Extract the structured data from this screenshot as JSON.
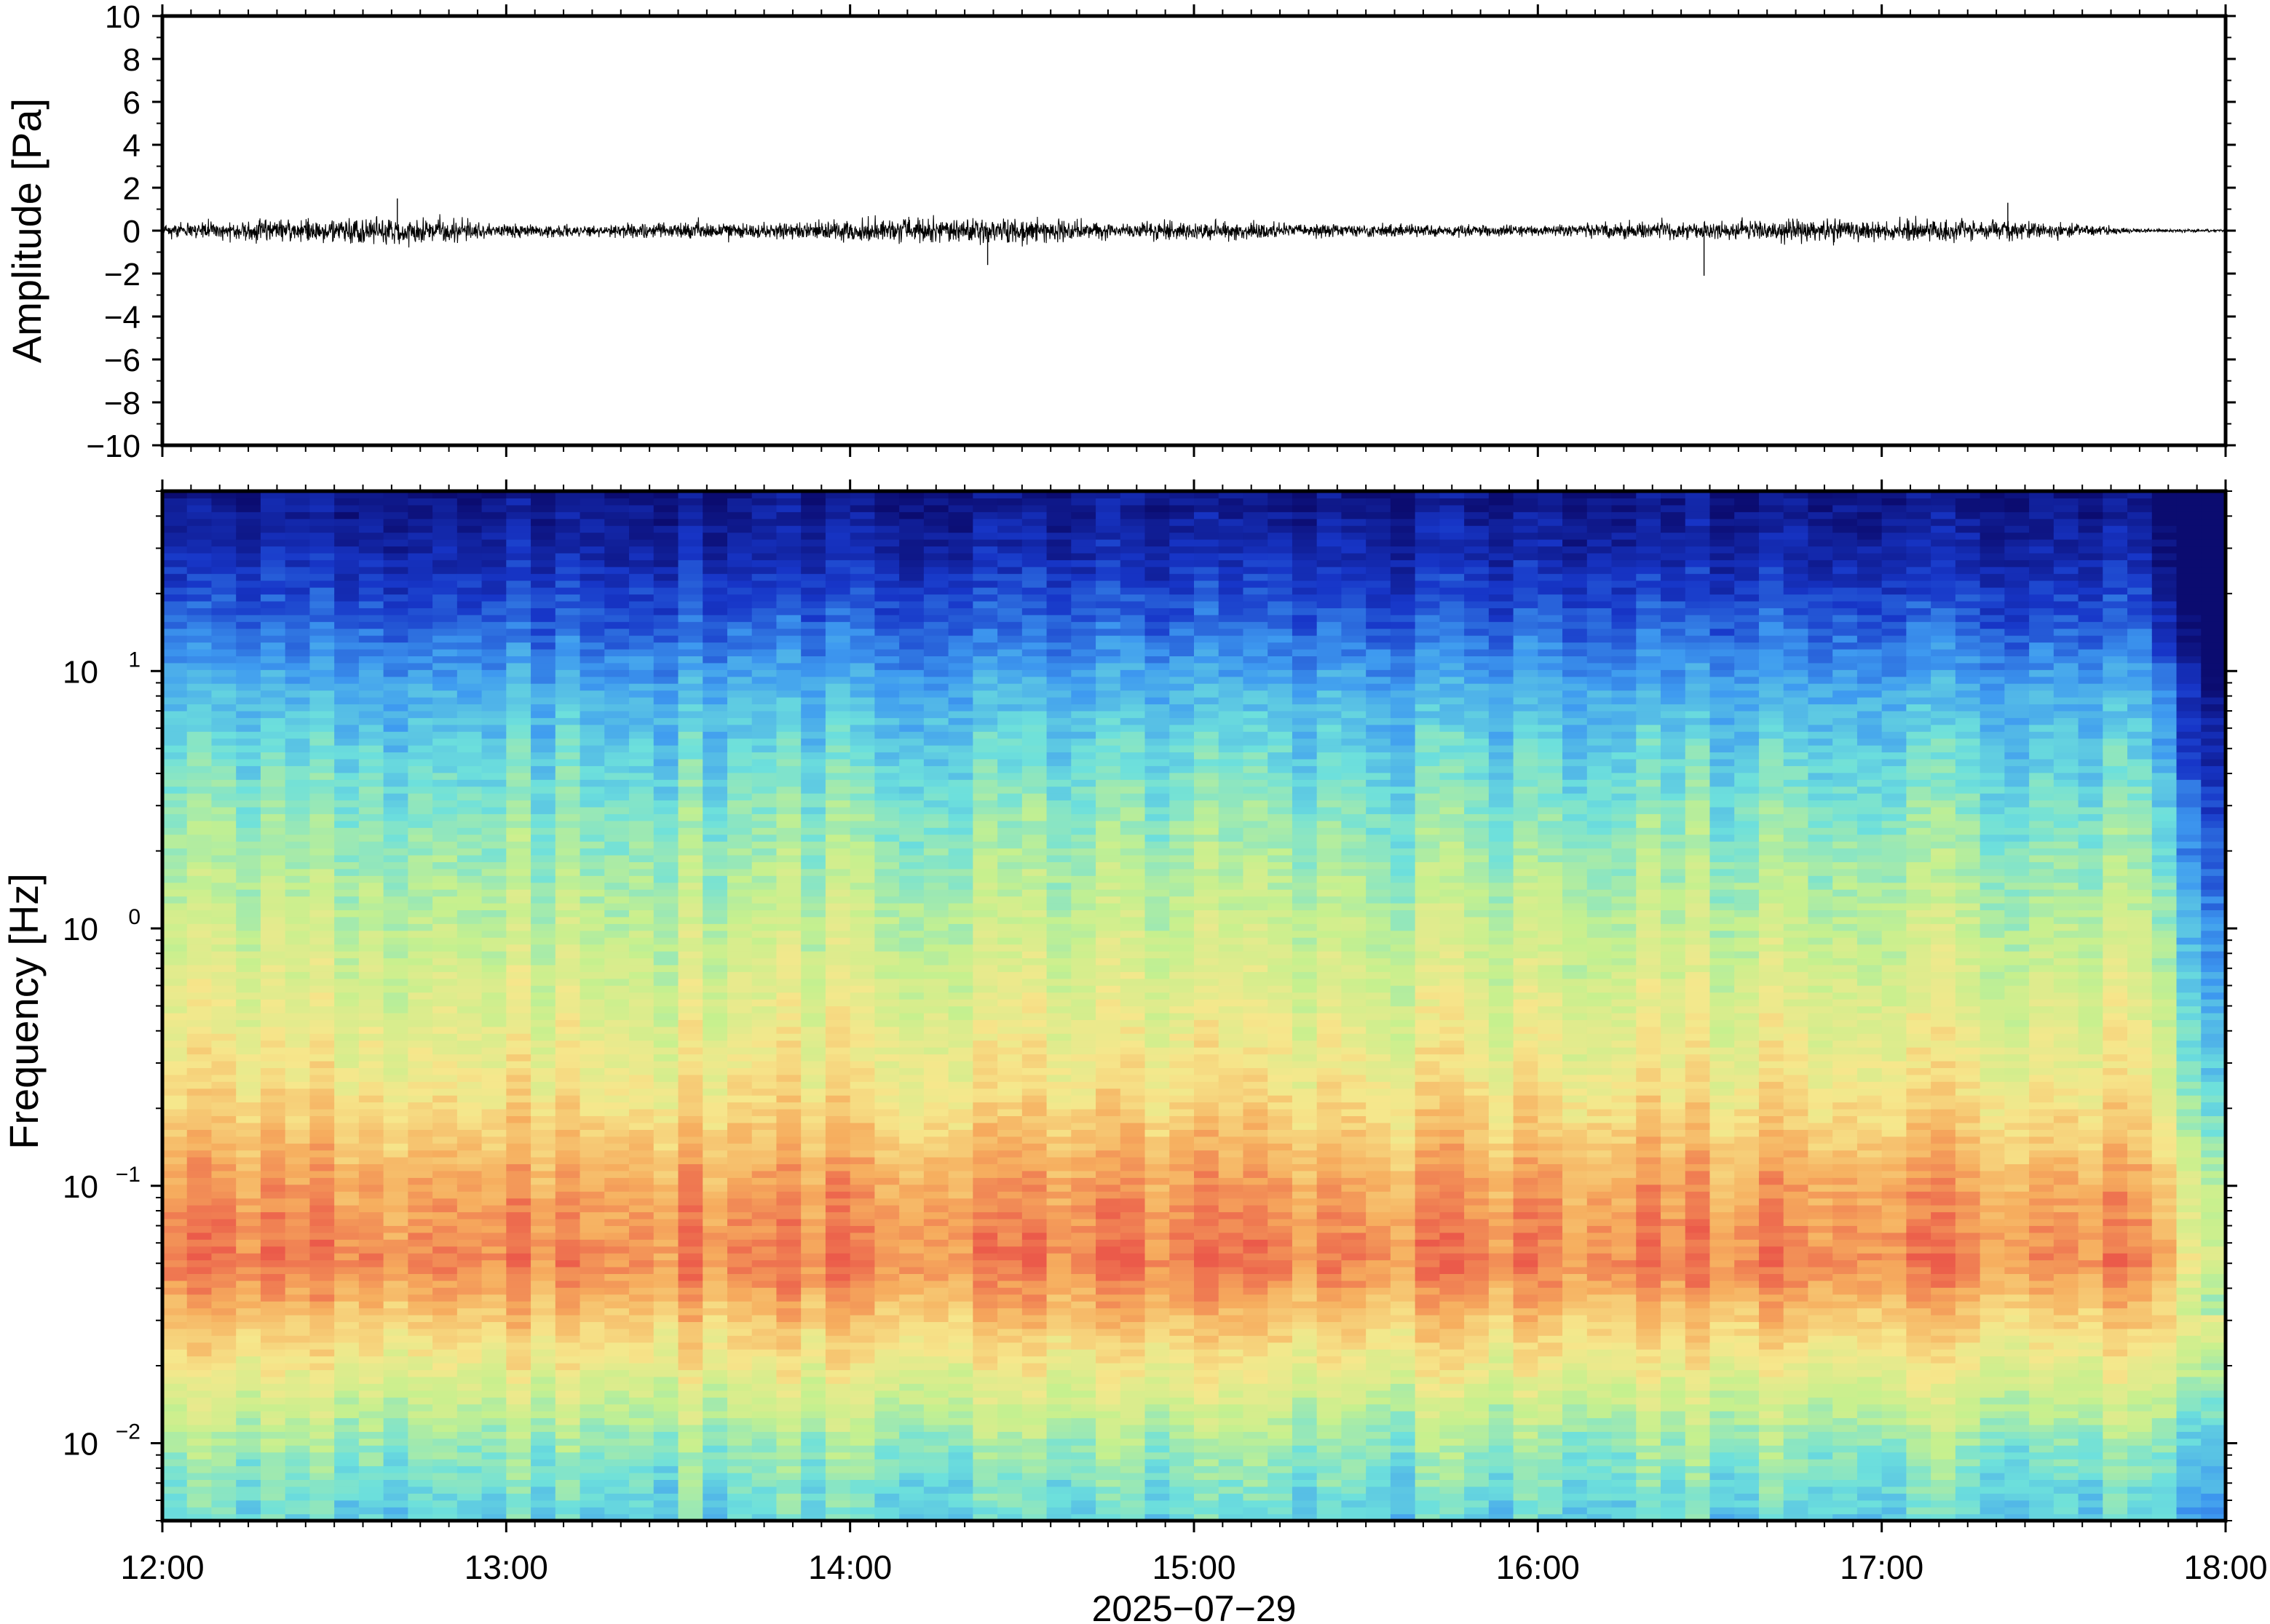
{
  "chart_data": [
    {
      "type": "line",
      "panel": "waveform",
      "ylabel": "Amplitude [Pa]",
      "ylim": [
        -10,
        10
      ],
      "yticks": [
        10,
        8,
        6,
        4,
        2,
        0,
        -2,
        -4,
        -6,
        -8,
        -10
      ],
      "ytick_labels": [
        "10",
        "8",
        "6",
        "4",
        "2",
        "0",
        "−2",
        "−4",
        "−6",
        "−8",
        "−10"
      ],
      "xlim": [
        "12:00",
        "18:00"
      ],
      "envelope_hours": [
        12.0,
        12.25,
        12.5,
        12.75,
        13.0,
        13.25,
        13.5,
        13.75,
        14.0,
        14.25,
        14.5,
        14.75,
        15.0,
        15.25,
        15.5,
        15.75,
        16.0,
        16.25,
        16.5,
        16.75,
        17.0,
        17.25,
        17.5,
        17.75,
        18.0
      ],
      "envelope_amplitude_pa": [
        0.5,
        0.8,
        0.9,
        1.0,
        0.5,
        0.45,
        0.7,
        0.6,
        0.8,
        1.0,
        1.0,
        0.6,
        0.7,
        0.55,
        0.5,
        0.45,
        0.4,
        0.6,
        0.75,
        0.85,
        0.8,
        0.75,
        0.65,
        0.15,
        0.08
      ],
      "peaks": [
        {
          "time": "12:41",
          "value": 1.5
        },
        {
          "time": "14:24",
          "value": -1.6
        },
        {
          "time": "16:29",
          "value": -2.1
        },
        {
          "time": "17:22",
          "value": 1.3
        }
      ],
      "line_color": "#000000"
    },
    {
      "type": "heatmap",
      "panel": "spectrogram",
      "ylabel": "Frequency [Hz]",
      "yscale": "log",
      "ylim": [
        0.005,
        50
      ],
      "yticks": [
        0.01,
        0.1,
        1,
        10
      ],
      "ytick_labels": [
        {
          "base": "10",
          "exp": "−2"
        },
        {
          "base": "10",
          "exp": "−1"
        },
        {
          "base": "10",
          "exp": "0"
        },
        {
          "base": "10",
          "exp": "1"
        }
      ],
      "xlabel": "2025−07−29",
      "xticks": [
        "12:00",
        "13:00",
        "14:00",
        "15:00",
        "16:00",
        "17:00",
        "18:00"
      ],
      "colormap": "jet",
      "colormap_stops": [
        "#0b0c70",
        "#1736c8",
        "#3e9af0",
        "#6de0dc",
        "#c6f08e",
        "#f6e78c",
        "#f6ad5e",
        "#eb5a4a"
      ],
      "peak_energy_band_hz": [
        0.03,
        0.15
      ],
      "signal_drop_after": "17:45"
    }
  ]
}
